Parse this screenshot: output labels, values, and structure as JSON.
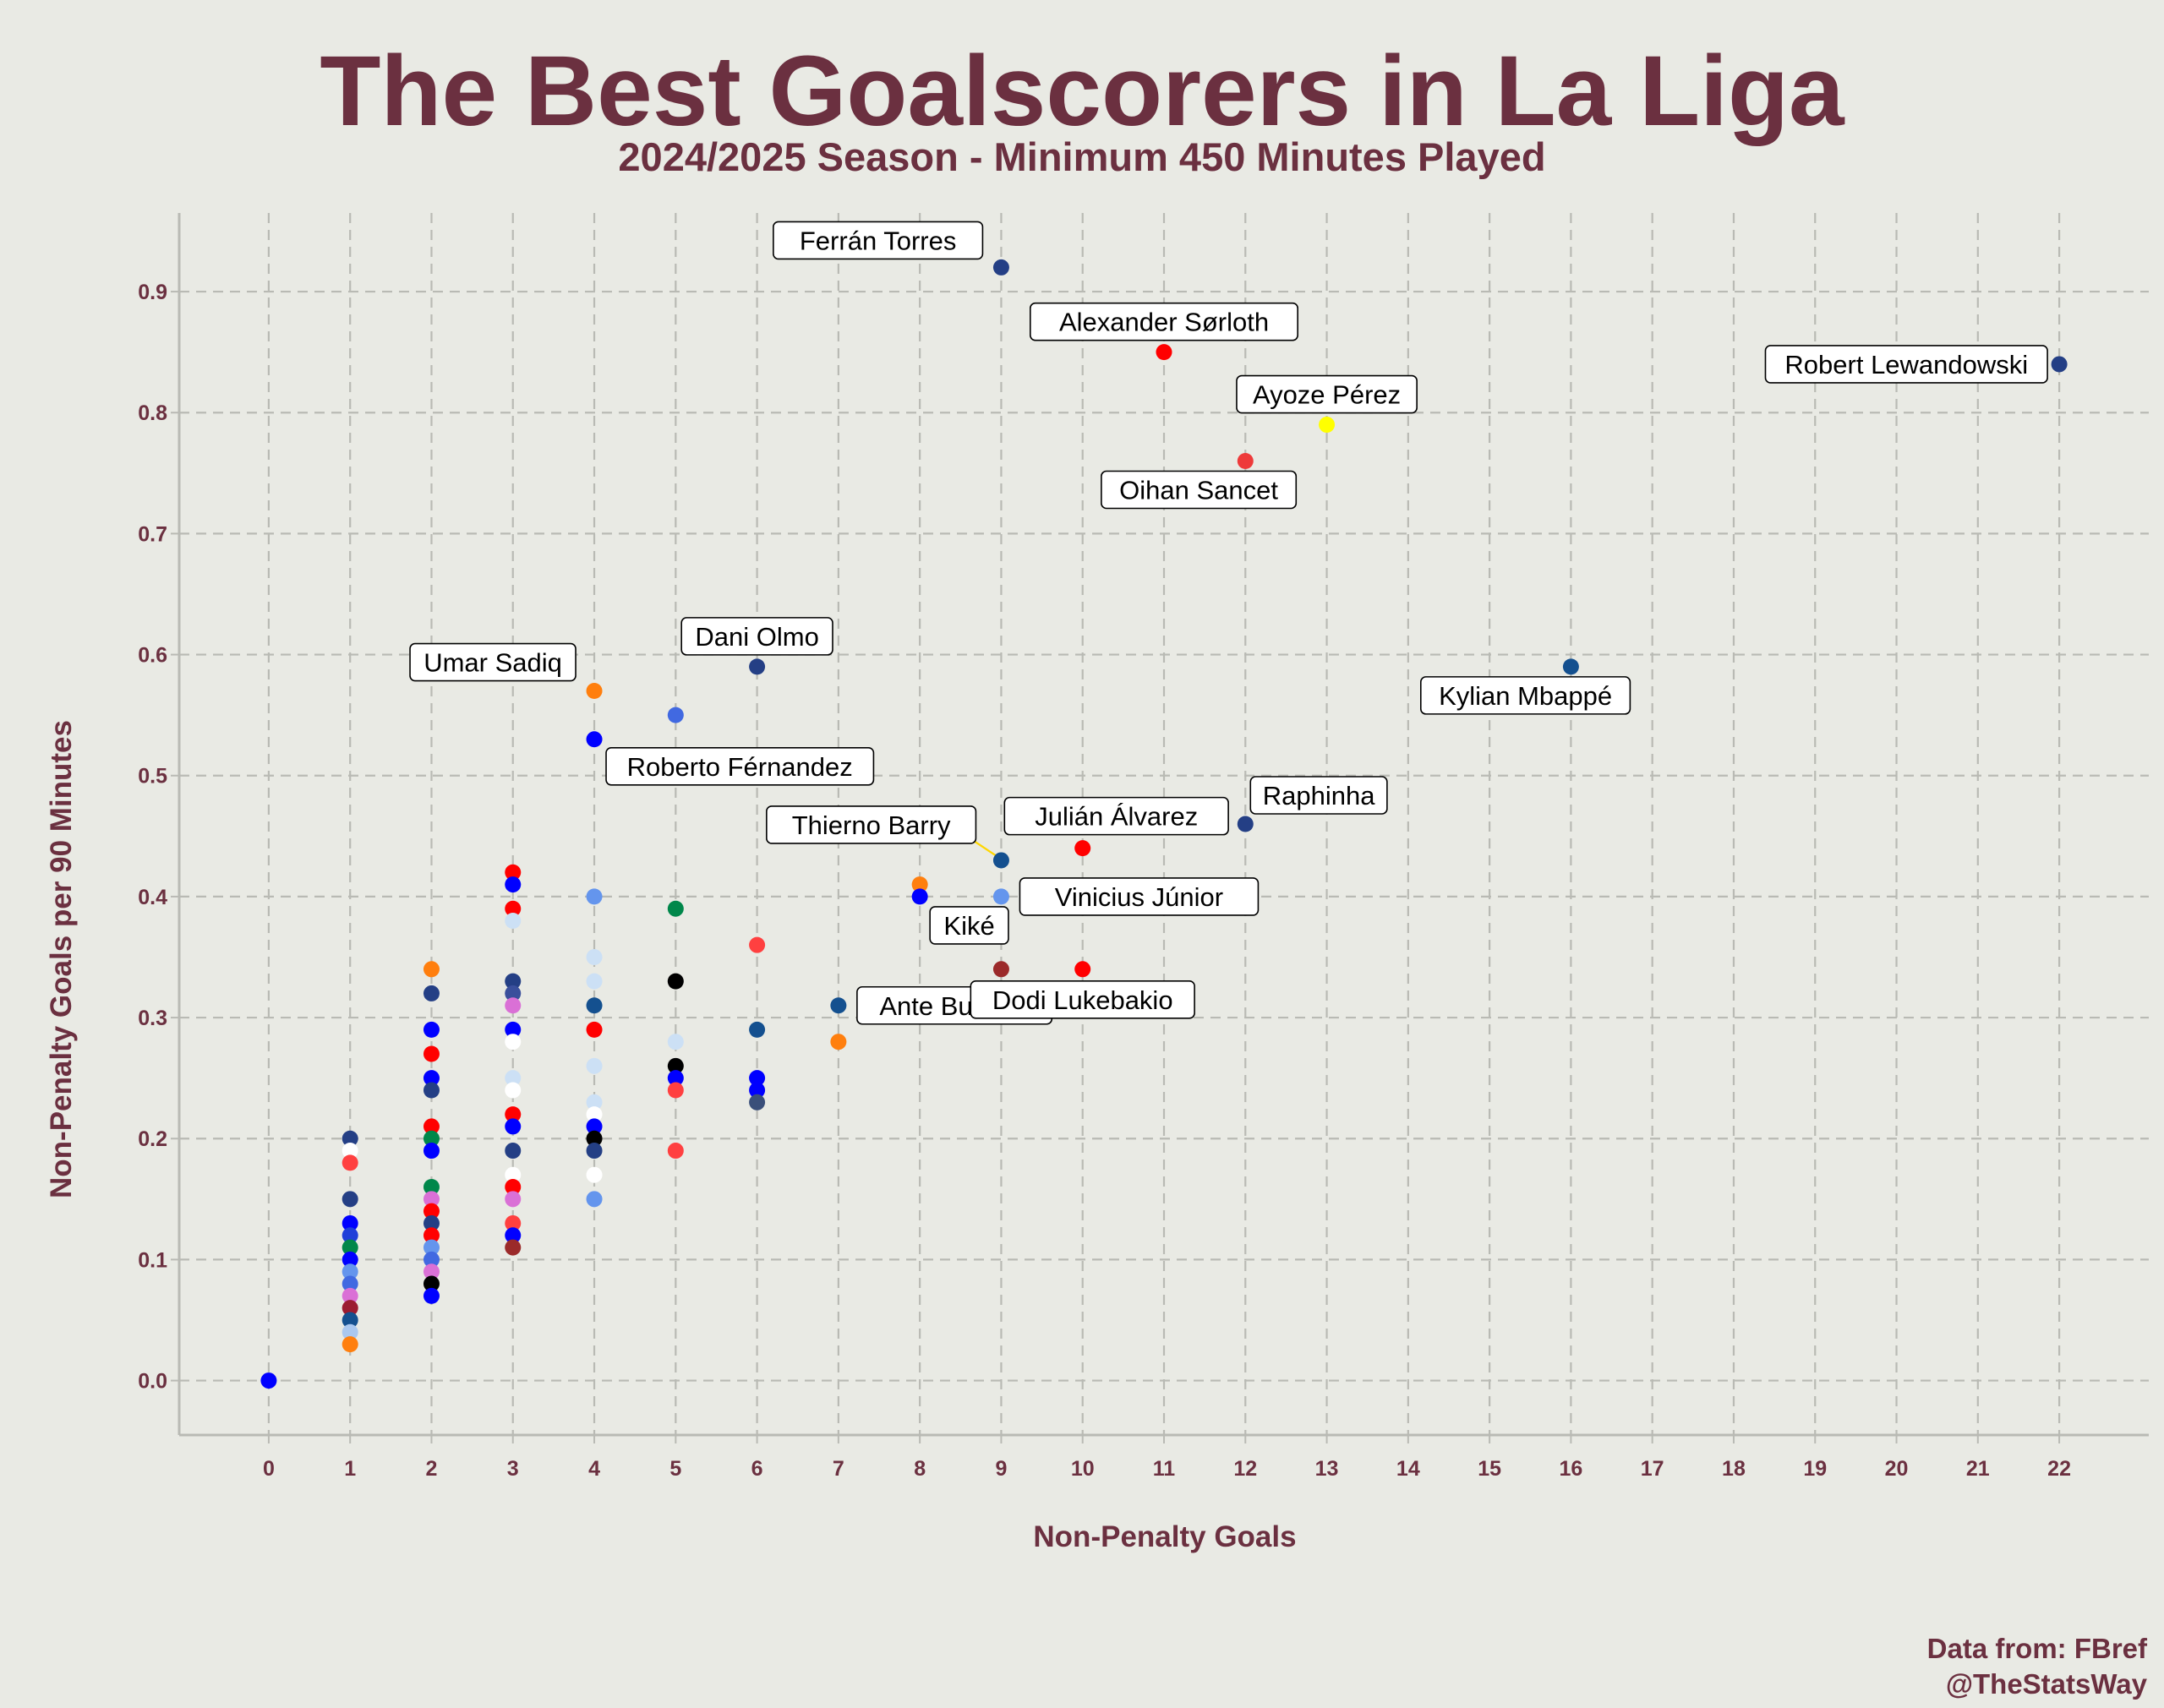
{
  "chart_data": {
    "type": "scatter",
    "title": "The Best Goalscorers in La Liga",
    "subtitle": "2024/2025 Season - Minimum 450 Minutes Played",
    "xlabel": "Non-Penalty Goals",
    "ylabel": "Non-Penalty Goals per 90 Minutes",
    "credit": [
      "Data from: FBref",
      "@TheStatsWay"
    ],
    "xlim": [
      -1.1,
      23.1
    ],
    "ylim": [
      -0.045,
      0.965
    ],
    "xticks": [
      "0",
      "1",
      "2",
      "3",
      "4",
      "5",
      "6",
      "7",
      "8",
      "9",
      "10",
      "11",
      "12",
      "13",
      "14",
      "15",
      "16",
      "17",
      "18",
      "19",
      "20",
      "21",
      "22"
    ],
    "yticks": [
      "0.0",
      "0.1",
      "0.2",
      "0.3",
      "0.4",
      "0.5",
      "0.6",
      "0.7",
      "0.8",
      "0.9"
    ],
    "grid": true,
    "labeled_points": [
      {
        "label": "Ferrán Torres",
        "x": 9,
        "y": 0.92,
        "color": "#243f85",
        "side": "left-up"
      },
      {
        "label": "Alexander Sørloth",
        "x": 11,
        "y": 0.85,
        "color": "#ff0000",
        "side": "up"
      },
      {
        "label": "Robert Lewandowski",
        "x": 22,
        "y": 0.84,
        "color": "#243f85",
        "side": "left"
      },
      {
        "label": "Ayoze Pérez",
        "x": 13,
        "y": 0.79,
        "color": "#ffff00",
        "side": "up"
      },
      {
        "label": "Oihan Sancet",
        "x": 12,
        "y": 0.76,
        "color": "#ee3a3a",
        "side": "left-down"
      },
      {
        "label": "Dani Olmo",
        "x": 6,
        "y": 0.59,
        "color": "#243f85",
        "side": "up"
      },
      {
        "label": "Kylian Mbappé",
        "x": 16,
        "y": 0.59,
        "color": "#14508f",
        "side": "left-down"
      },
      {
        "label": "Umar Sadiq",
        "x": 4,
        "y": 0.57,
        "color": "#ff7f0e",
        "side": "left-up"
      },
      {
        "label": "Roberto Férnandez",
        "x": 4,
        "y": 0.53,
        "color": "#0000ff",
        "side": "right-down"
      },
      {
        "label": "Raphinha",
        "x": 12,
        "y": 0.46,
        "color": "#243f85",
        "side": "right-up"
      },
      {
        "label": "Julián Álvarez",
        "x": 10,
        "y": 0.44,
        "color": "#ff0000",
        "side": "up"
      },
      {
        "label": "Thierno Barry",
        "x": 9,
        "y": 0.43,
        "color": "#14508f",
        "side": "left-up"
      },
      {
        "label": "Vinicius Júnior",
        "x": 9,
        "y": 0.4,
        "color": "#6495ed",
        "side": "right"
      },
      {
        "label": "Kiké",
        "x": 8,
        "y": 0.4,
        "color": "#0000ff",
        "side": "right-down"
      },
      {
        "label": "Ante Budimir",
        "x": 7,
        "y": 0.31,
        "color": "#14508f",
        "side": "right"
      },
      {
        "label": "Dodi Lukebakio",
        "x": 10,
        "y": 0.34,
        "color": "#ff0000",
        "side": "down"
      }
    ],
    "points": [
      {
        "x": 0,
        "y": 0.0,
        "color": "#0000ff"
      },
      {
        "x": 1,
        "y": 0.2,
        "color": "#243f85"
      },
      {
        "x": 1,
        "y": 0.19,
        "color": "#ffffff"
      },
      {
        "x": 1,
        "y": 0.18,
        "color": "#ff4040"
      },
      {
        "x": 1,
        "y": 0.15,
        "color": "#243f85"
      },
      {
        "x": 1,
        "y": 0.13,
        "color": "#0000ff"
      },
      {
        "x": 1,
        "y": 0.12,
        "color": "#1f3fd9"
      },
      {
        "x": 1,
        "y": 0.11,
        "color": "#00874a"
      },
      {
        "x": 1,
        "y": 0.1,
        "color": "#0000ff"
      },
      {
        "x": 1,
        "y": 0.09,
        "color": "#6495ed"
      },
      {
        "x": 1,
        "y": 0.08,
        "color": "#4169e1"
      },
      {
        "x": 1,
        "y": 0.07,
        "color": "#da70d6"
      },
      {
        "x": 1,
        "y": 0.06,
        "color": "#9b1b30"
      },
      {
        "x": 1,
        "y": 0.05,
        "color": "#14508f"
      },
      {
        "x": 1,
        "y": 0.04,
        "color": "#aac8f0"
      },
      {
        "x": 1,
        "y": 0.03,
        "color": "#ff7f0e"
      },
      {
        "x": 2,
        "y": 0.34,
        "color": "#ff7f0e"
      },
      {
        "x": 2,
        "y": 0.32,
        "color": "#243f85"
      },
      {
        "x": 2,
        "y": 0.29,
        "color": "#0000ff"
      },
      {
        "x": 2,
        "y": 0.27,
        "color": "#ff0000"
      },
      {
        "x": 2,
        "y": 0.25,
        "color": "#0000ff"
      },
      {
        "x": 2,
        "y": 0.24,
        "color": "#243f85"
      },
      {
        "x": 2,
        "y": 0.21,
        "color": "#ff0000"
      },
      {
        "x": 2,
        "y": 0.2,
        "color": "#00874a"
      },
      {
        "x": 2,
        "y": 0.19,
        "color": "#0000ff"
      },
      {
        "x": 2,
        "y": 0.16,
        "color": "#00874a"
      },
      {
        "x": 2,
        "y": 0.15,
        "color": "#da70d6"
      },
      {
        "x": 2,
        "y": 0.14,
        "color": "#ff0000"
      },
      {
        "x": 2,
        "y": 0.13,
        "color": "#243f85"
      },
      {
        "x": 2,
        "y": 0.12,
        "color": "#ff0000"
      },
      {
        "x": 2,
        "y": 0.11,
        "color": "#6495ed"
      },
      {
        "x": 2,
        "y": 0.1,
        "color": "#4169e1"
      },
      {
        "x": 2,
        "y": 0.09,
        "color": "#da70d6"
      },
      {
        "x": 2,
        "y": 0.08,
        "color": "#000000"
      },
      {
        "x": 2,
        "y": 0.07,
        "color": "#0000ff"
      },
      {
        "x": 3,
        "y": 0.42,
        "color": "#ff0000"
      },
      {
        "x": 3,
        "y": 0.41,
        "color": "#0000ff"
      },
      {
        "x": 3,
        "y": 0.39,
        "color": "#ff0000"
      },
      {
        "x": 3,
        "y": 0.38,
        "color": "#cce0f5"
      },
      {
        "x": 3,
        "y": 0.33,
        "color": "#243f85"
      },
      {
        "x": 3,
        "y": 0.32,
        "color": "#3a4f9c"
      },
      {
        "x": 3,
        "y": 0.31,
        "color": "#da70d6"
      },
      {
        "x": 3,
        "y": 0.29,
        "color": "#0000ff"
      },
      {
        "x": 3,
        "y": 0.28,
        "color": "#ffffff"
      },
      {
        "x": 3,
        "y": 0.25,
        "color": "#cce0f5"
      },
      {
        "x": 3,
        "y": 0.24,
        "color": "#ffffff"
      },
      {
        "x": 3,
        "y": 0.22,
        "color": "#ff0000"
      },
      {
        "x": 3,
        "y": 0.21,
        "color": "#0000ff"
      },
      {
        "x": 3,
        "y": 0.19,
        "color": "#243f85"
      },
      {
        "x": 3,
        "y": 0.17,
        "color": "#ffffff"
      },
      {
        "x": 3,
        "y": 0.16,
        "color": "#ff0000"
      },
      {
        "x": 3,
        "y": 0.15,
        "color": "#da70d6"
      },
      {
        "x": 3,
        "y": 0.13,
        "color": "#ff4040"
      },
      {
        "x": 3,
        "y": 0.12,
        "color": "#0000ff"
      },
      {
        "x": 3,
        "y": 0.11,
        "color": "#9b2a2a"
      },
      {
        "x": 4,
        "y": 0.4,
        "color": "#6495ed"
      },
      {
        "x": 4,
        "y": 0.35,
        "color": "#cce0f5"
      },
      {
        "x": 4,
        "y": 0.33,
        "color": "#cce0f5"
      },
      {
        "x": 4,
        "y": 0.31,
        "color": "#14508f"
      },
      {
        "x": 4,
        "y": 0.29,
        "color": "#ff0000"
      },
      {
        "x": 4,
        "y": 0.26,
        "color": "#cce0f5"
      },
      {
        "x": 4,
        "y": 0.23,
        "color": "#cce0f5"
      },
      {
        "x": 4,
        "y": 0.22,
        "color": "#ffffff"
      },
      {
        "x": 4,
        "y": 0.21,
        "color": "#0000ff"
      },
      {
        "x": 4,
        "y": 0.2,
        "color": "#000000"
      },
      {
        "x": 4,
        "y": 0.19,
        "color": "#243f85"
      },
      {
        "x": 4,
        "y": 0.17,
        "color": "#ffffff"
      },
      {
        "x": 4,
        "y": 0.15,
        "color": "#6495ed"
      },
      {
        "x": 5,
        "y": 0.55,
        "color": "#4169e1"
      },
      {
        "x": 5,
        "y": 0.39,
        "color": "#00874a"
      },
      {
        "x": 5,
        "y": 0.33,
        "color": "#000000"
      },
      {
        "x": 5,
        "y": 0.28,
        "color": "#cce0f5"
      },
      {
        "x": 5,
        "y": 0.26,
        "color": "#000000"
      },
      {
        "x": 5,
        "y": 0.25,
        "color": "#0000ff"
      },
      {
        "x": 5,
        "y": 0.24,
        "color": "#ff4040"
      },
      {
        "x": 5,
        "y": 0.19,
        "color": "#ff4040"
      },
      {
        "x": 6,
        "y": 0.36,
        "color": "#ff4040"
      },
      {
        "x": 6,
        "y": 0.29,
        "color": "#14508f"
      },
      {
        "x": 6,
        "y": 0.25,
        "color": "#0000ff"
      },
      {
        "x": 6,
        "y": 0.24,
        "color": "#0000ff"
      },
      {
        "x": 6,
        "y": 0.23,
        "color": "#3a4f7a"
      },
      {
        "x": 7,
        "y": 0.28,
        "color": "#ff7f0e"
      },
      {
        "x": 8,
        "y": 0.41,
        "color": "#ff7f0e"
      },
      {
        "x": 9,
        "y": 0.34,
        "color": "#9b2a2a"
      }
    ]
  }
}
